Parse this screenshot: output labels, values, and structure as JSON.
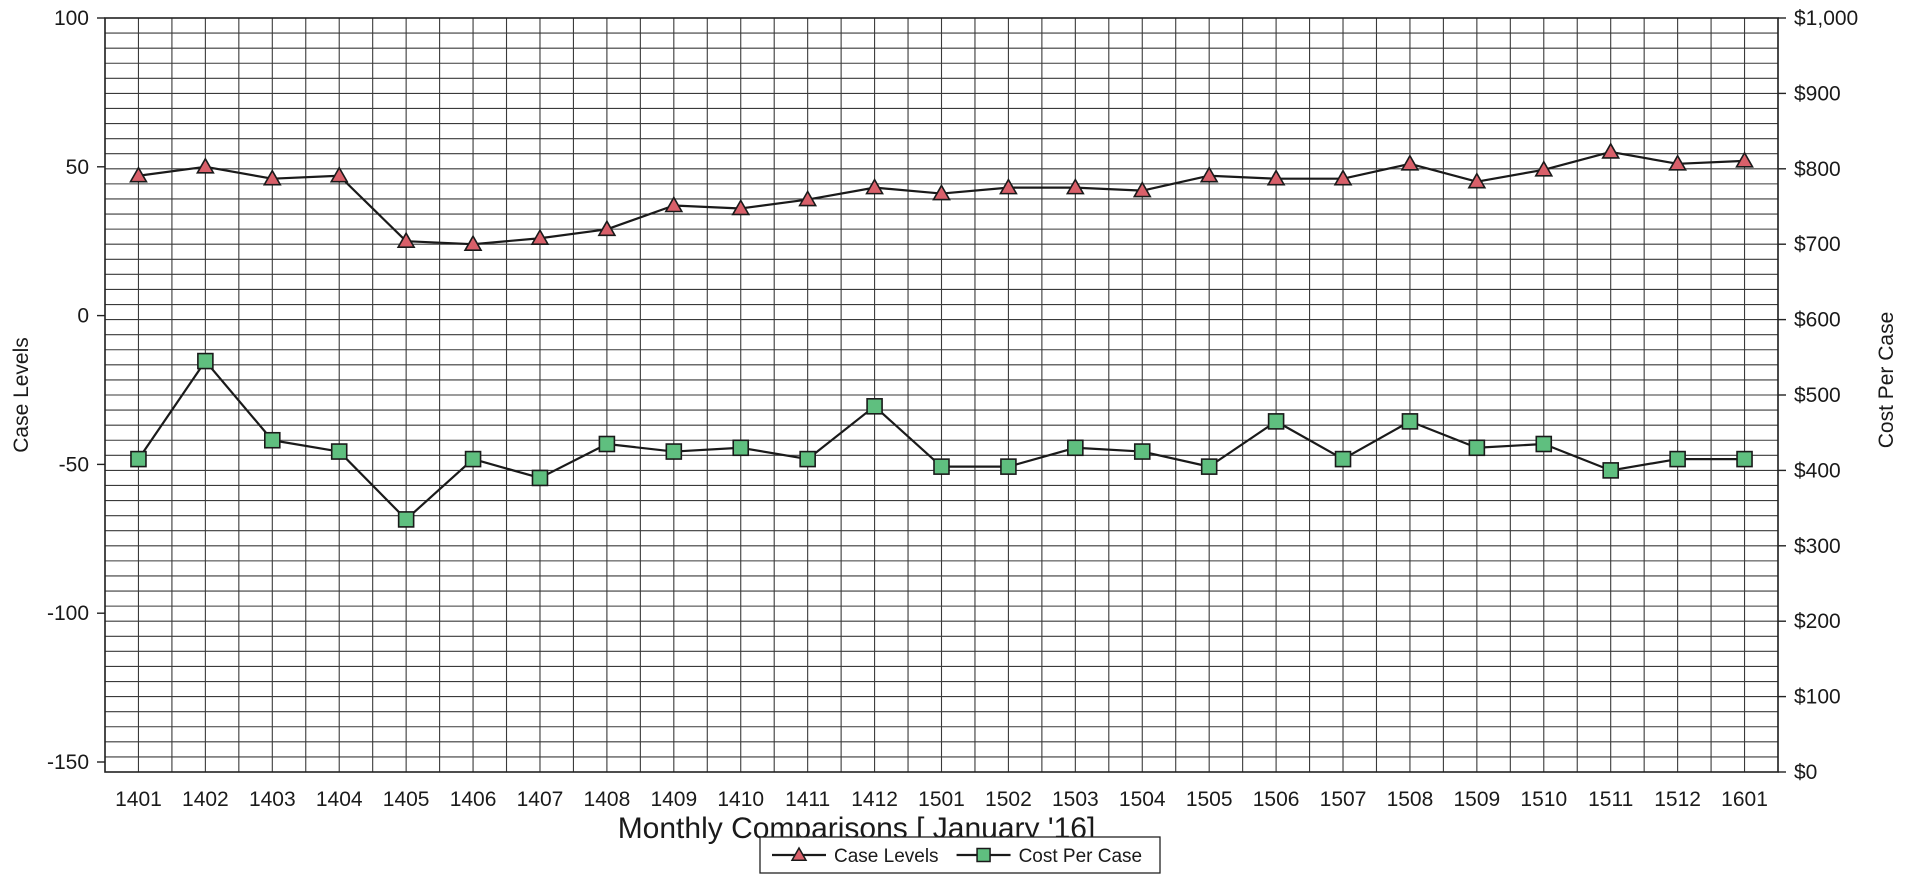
{
  "chart_data": {
    "type": "line",
    "title": "",
    "xlabel": "Monthly Comparisons [  January '16]",
    "ylabel_left": "Case Levels",
    "ylabel_right": "Cost Per Case",
    "categories": [
      "1401",
      "1402",
      "1403",
      "1404",
      "1405",
      "1406",
      "1407",
      "1408",
      "1409",
      "1410",
      "1411",
      "1412",
      "1501",
      "1502",
      "1503",
      "1504",
      "1505",
      "1506",
      "1507",
      "1508",
      "1509",
      "1510",
      "1511",
      "1512",
      "1601"
    ],
    "y_left": {
      "range": [
        -150,
        100
      ],
      "ticks": [
        -150,
        -100,
        -50,
        0,
        50,
        100
      ],
      "tick_labels": [
        "-150",
        "-100",
        "-50",
        "0",
        "50",
        "100"
      ]
    },
    "y_right": {
      "range": [
        0,
        1000
      ],
      "ticks": [
        0,
        100,
        200,
        300,
        400,
        500,
        600,
        700,
        800,
        900,
        1000
      ],
      "tick_labels": [
        "$0",
        "$100",
        "$200",
        "$300",
        "$400",
        "$500",
        "$600",
        "$700",
        "$800",
        "$900",
        "$1,000"
      ]
    },
    "grid": true,
    "legend_position": "bottom-center",
    "series": [
      {
        "name": "Case Levels",
        "axis": "left",
        "marker": "triangle",
        "color": "#d9606a",
        "values": [
          47,
          50,
          46,
          47,
          25,
          24,
          26,
          29,
          37,
          36,
          39,
          43,
          41,
          43,
          43,
          42,
          47,
          46,
          46,
          51,
          45,
          49,
          55,
          51,
          52
        ]
      },
      {
        "name": "Cost Per Case",
        "axis": "right",
        "marker": "square",
        "color": "#5fbf7f",
        "values": [
          415,
          545,
          440,
          425,
          335,
          415,
          390,
          435,
          425,
          430,
          415,
          485,
          405,
          405,
          430,
          425,
          405,
          465,
          415,
          465,
          430,
          435,
          400,
          415,
          415
        ]
      }
    ]
  }
}
